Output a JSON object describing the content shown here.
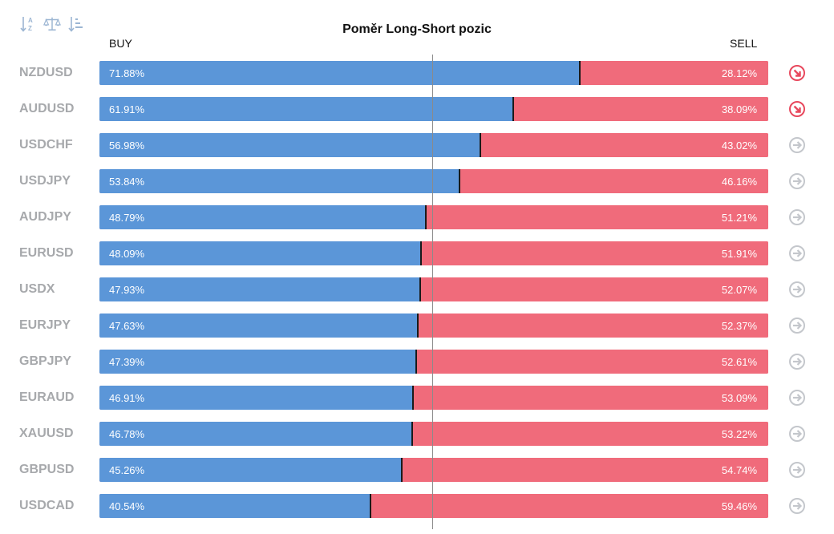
{
  "header": {
    "title": "Poměr Long-Short pozic",
    "buy_label": "BUY",
    "sell_label": "SELL"
  },
  "toolbar": {
    "icons": [
      "sort-alpha-icon",
      "balance-scale-icon",
      "sort-amount-icon"
    ]
  },
  "colors": {
    "buy": "#5b96d8",
    "sell": "#f06b7b",
    "signal_sell": "#e8485d",
    "signal_neutral": "#c4c7cc"
  },
  "chart_data": {
    "type": "bar",
    "stacked": true,
    "orientation": "horizontal",
    "title": "Poměr Long-Short pozic",
    "categories": [
      "NZDUSD",
      "AUDUSD",
      "USDCHF",
      "USDJPY",
      "AUDJPY",
      "EURUSD",
      "USDX",
      "EURJPY",
      "GBPJPY",
      "EURAUD",
      "XAUUSD",
      "GBPUSD",
      "USDCAD"
    ],
    "series": [
      {
        "name": "BUY",
        "values": [
          71.88,
          61.91,
          56.98,
          53.84,
          48.79,
          48.09,
          47.93,
          47.63,
          47.39,
          46.91,
          46.78,
          45.26,
          40.54
        ]
      },
      {
        "name": "SELL",
        "values": [
          28.12,
          38.09,
          43.02,
          46.16,
          51.21,
          51.91,
          52.07,
          52.37,
          52.61,
          53.09,
          53.22,
          54.74,
          59.46
        ]
      }
    ],
    "xlim": [
      0,
      100
    ],
    "reference_line": 50
  },
  "rows": [
    {
      "symbol": "NZDUSD",
      "buy": "71.88%",
      "sell": "28.12%",
      "signal": "sell"
    },
    {
      "symbol": "AUDUSD",
      "buy": "61.91%",
      "sell": "38.09%",
      "signal": "sell"
    },
    {
      "symbol": "USDCHF",
      "buy": "56.98%",
      "sell": "43.02%",
      "signal": "neutral"
    },
    {
      "symbol": "USDJPY",
      "buy": "53.84%",
      "sell": "46.16%",
      "signal": "neutral"
    },
    {
      "symbol": "AUDJPY",
      "buy": "48.79%",
      "sell": "51.21%",
      "signal": "neutral"
    },
    {
      "symbol": "EURUSD",
      "buy": "48.09%",
      "sell": "51.91%",
      "signal": "neutral"
    },
    {
      "symbol": "USDX",
      "buy": "47.93%",
      "sell": "52.07%",
      "signal": "neutral"
    },
    {
      "symbol": "EURJPY",
      "buy": "47.63%",
      "sell": "52.37%",
      "signal": "neutral"
    },
    {
      "symbol": "GBPJPY",
      "buy": "47.39%",
      "sell": "52.61%",
      "signal": "neutral"
    },
    {
      "symbol": "EURAUD",
      "buy": "46.91%",
      "sell": "53.09%",
      "signal": "neutral"
    },
    {
      "symbol": "XAUUSD",
      "buy": "46.78%",
      "sell": "53.22%",
      "signal": "neutral"
    },
    {
      "symbol": "GBPUSD",
      "buy": "45.26%",
      "sell": "54.74%",
      "signal": "neutral"
    },
    {
      "symbol": "USDCAD",
      "buy": "40.54%",
      "sell": "59.46%",
      "signal": "neutral"
    }
  ]
}
